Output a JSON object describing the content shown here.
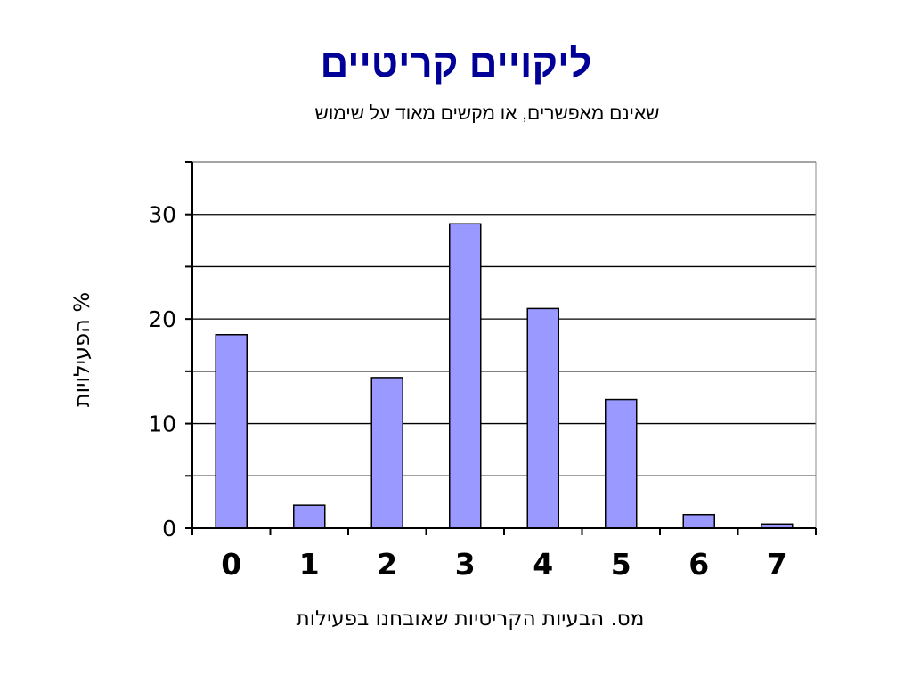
{
  "title": "ליקויים קריטיים",
  "subtitle": "שאינם מאפשרים, או מקשים מאוד על שימוש",
  "colors": {
    "title": "#000099",
    "bar_fill": "#9999ff",
    "bar_stroke": "#000000",
    "grid": "#000000"
  },
  "chart_data": {
    "type": "bar",
    "categories": [
      "0",
      "1",
      "2",
      "3",
      "4",
      "5",
      "6",
      "7"
    ],
    "values": [
      18.5,
      2.2,
      14.4,
      29.1,
      21.0,
      12.3,
      1.3,
      0.4
    ],
    "xlabel": "מס. הבעיות הקריטיות שאובחנו  בפעילות",
    "ylabel": "% הפעילויות",
    "ylim": [
      0,
      35
    ],
    "yticks": [
      0,
      10,
      20,
      30
    ],
    "grid": true,
    "legend": "none"
  }
}
